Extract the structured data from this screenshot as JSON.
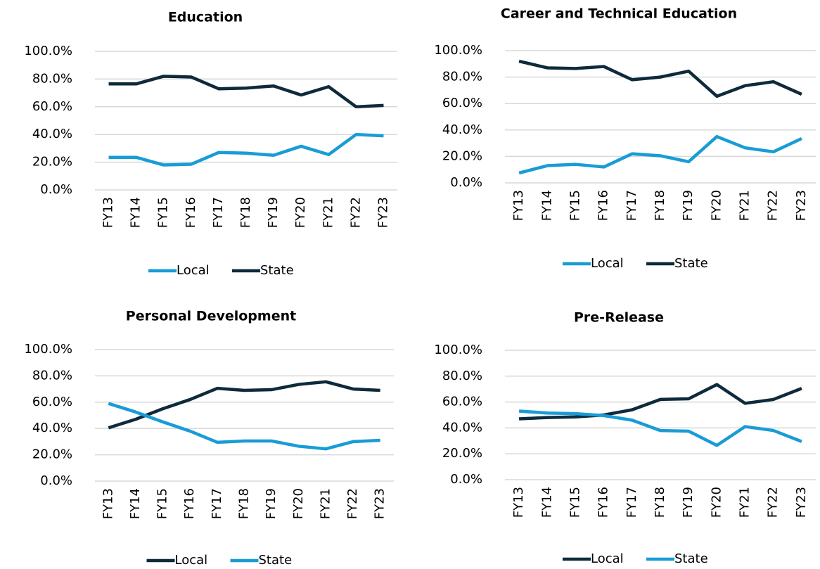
{
  "chart_data": [
    {
      "type": "line",
      "title": "Education",
      "categories": [
        "FY13",
        "FY14",
        "FY15",
        "FY16",
        "FY17",
        "FY18",
        "FY19",
        "FY20",
        "FY21",
        "FY22",
        "FY23"
      ],
      "series": [
        {
          "name": "Local",
          "color": "#199cd6",
          "values": [
            23.5,
            23.5,
            18,
            18.5,
            27,
            26.5,
            25,
            31.5,
            25.5,
            40,
            39
          ]
        },
        {
          "name": "State",
          "color": "#0e2a3b",
          "values": [
            76.5,
            76.5,
            82,
            81.5,
            73,
            73.5,
            75,
            68.5,
            74.5,
            60,
            61
          ]
        }
      ],
      "ylim": [
        0,
        100
      ],
      "yticks": [
        {
          "value": 0,
          "label": "0.0%"
        },
        {
          "value": 20,
          "label": "20.0%"
        },
        {
          "value": 40,
          "label": "40.0%"
        },
        {
          "value": 60,
          "label": "60.0%"
        },
        {
          "value": 80,
          "label": "80.0%"
        },
        {
          "value": 100,
          "label": "100.0%"
        }
      ],
      "grid": true,
      "legend": "bottom"
    },
    {
      "type": "line",
      "title": "Career and Technical Education",
      "categories": [
        "FY13",
        "FY14",
        "FY15",
        "FY16",
        "FY17",
        "FY18",
        "FY19",
        "FY20",
        "FY21",
        "FY22",
        "FY23"
      ],
      "series": [
        {
          "name": "Local",
          "color": "#199cd6",
          "values": [
            7.5,
            13,
            14,
            12,
            22,
            20.5,
            16,
            35,
            26.5,
            23.5,
            33.5
          ]
        },
        {
          "name": "State",
          "color": "#0e2a3b",
          "values": [
            92,
            87,
            86.5,
            88,
            78,
            80,
            84.5,
            65.5,
            73.5,
            76.5,
            67
          ]
        }
      ],
      "ylim": [
        0,
        100
      ],
      "yticks": [
        {
          "value": 0,
          "label": "0.0%"
        },
        {
          "value": 20,
          "label": "20.0%"
        },
        {
          "value": 40,
          "label": "40.0%"
        },
        {
          "value": 60,
          "label": "60.0%"
        },
        {
          "value": 80,
          "label": "80.0%"
        },
        {
          "value": 100,
          "label": "100.0%"
        }
      ],
      "grid": true,
      "legend": "bottom"
    },
    {
      "type": "line",
      "title": "Personal Development",
      "categories": [
        "FY13",
        "FY14",
        "FY15",
        "FY16",
        "FY17",
        "FY18",
        "FY19",
        "FY20",
        "FY21",
        "FY22",
        "FY23"
      ],
      "series": [
        {
          "name": "Local",
          "color": "#0e2a3b",
          "values": [
            40.5,
            47,
            55,
            62,
            70.5,
            69,
            69.5,
            73.5,
            75.5,
            70,
            69
          ]
        },
        {
          "name": "State",
          "color": "#199cd6",
          "values": [
            59,
            52.5,
            45,
            38,
            29.5,
            30.5,
            30.5,
            26.5,
            24.5,
            30,
            31
          ]
        }
      ],
      "ylim": [
        0,
        100
      ],
      "yticks": [
        {
          "value": 0,
          "label": "0.0%"
        },
        {
          "value": 20,
          "label": "20.0%"
        },
        {
          "value": 40,
          "label": "40.0%"
        },
        {
          "value": 60,
          "label": "60.0%"
        },
        {
          "value": 80,
          "label": "80.0%"
        },
        {
          "value": 100,
          "label": "100.0%"
        }
      ],
      "grid": true,
      "legend": "bottom"
    },
    {
      "type": "line",
      "title": "Pre-Release",
      "categories": [
        "FY13",
        "FY14",
        "FY15",
        "FY16",
        "FY17",
        "FY18",
        "FY19",
        "FY20",
        "FY21",
        "FY22",
        "FY23"
      ],
      "series": [
        {
          "name": "Local",
          "color": "#0e2a3b",
          "values": [
            47,
            48,
            48.5,
            50,
            54,
            62,
            62.5,
            73.5,
            59,
            62,
            70.5
          ]
        },
        {
          "name": "State",
          "color": "#199cd6",
          "values": [
            53,
            51.5,
            51,
            49.5,
            46,
            38,
            37.5,
            26.5,
            41,
            38,
            29.5
          ]
        }
      ],
      "ylim": [
        0,
        100
      ],
      "yticks": [
        {
          "value": 0,
          "label": "0.0%"
        },
        {
          "value": 20,
          "label": "20.0%"
        },
        {
          "value": 40,
          "label": "40.0%"
        },
        {
          "value": 60,
          "label": "60.0%"
        },
        {
          "value": 80,
          "label": "80.0%"
        },
        {
          "value": 100,
          "label": "100.0%"
        }
      ],
      "grid": true,
      "legend": "bottom"
    }
  ]
}
